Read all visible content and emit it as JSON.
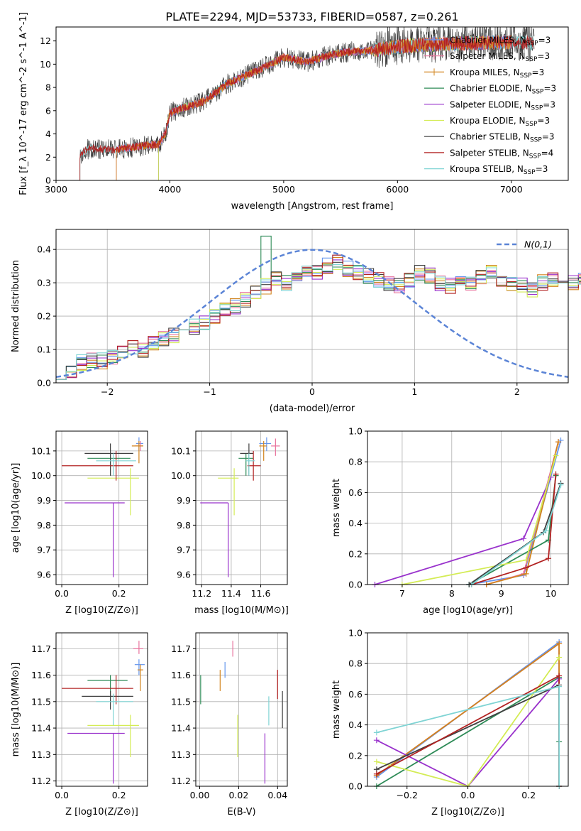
{
  "figure_title": "PLATE=2294, MJD=53733, FIBERID=0587, z=0.261",
  "colors": {
    "Chabrier MILES": "#6495ed",
    "Salpeter MILES": "#e8729c",
    "Kroupa MILES": "#d2841e",
    "Chabrier ELODIE": "#2e8b57",
    "Salpeter ELODIE": "#9932cc",
    "Kroupa ELODIE": "#d4ec55",
    "Chabrier STELIB": "#404040",
    "Salpeter STELIB": "#b22222",
    "Kroupa STELIB": "#7fd4d4",
    "gauss": "#5b84d6",
    "grid": "#b0b0b0"
  },
  "chart_data": [
    {
      "id": "spectrum",
      "type": "line",
      "title": "PLATE=2294, MJD=53733, FIBERID=0587, z=0.261",
      "xlabel": "wavelength [Angstrom, rest frame]",
      "ylabel": "Flux [f_λ 10^-17 erg cm^-2 s^-1 A^-1]",
      "xlim": [
        3000,
        7500
      ],
      "ylim": [
        0,
        13.2
      ],
      "xticks": [
        3000,
        4000,
        5000,
        6000,
        7000
      ],
      "yticks": [
        0,
        2,
        4,
        6,
        8,
        10,
        12
      ],
      "grid": false,
      "legend_position": "top-right",
      "legend": [
        "Chabrier MILES, N_SSP=3",
        "Salpeter MILES, N_SSP=3",
        "Kroupa MILES, N_SSP=3",
        "Chabrier ELODIE, N_SSP=3",
        "Salpeter ELODIE, N_SSP=3",
        "Kroupa ELODIE, N_SSP=3",
        "Chabrier STELIB, N_SSP=3",
        "Salpeter STELIB, N_SSP=4",
        "Kroupa STELIB, N_SSP=3"
      ],
      "continuum": {
        "x": [
          3210,
          3300,
          3500,
          3700,
          3900,
          3960,
          4000,
          4100,
          4300,
          4500,
          4800,
          5000,
          5200,
          5500,
          5800,
          6000,
          6300,
          6600,
          7000,
          7200
        ],
        "y": [
          2.2,
          2.8,
          2.6,
          2.9,
          3.1,
          4.0,
          5.8,
          6.2,
          6.8,
          8.3,
          9.6,
          10.6,
          10.2,
          11.0,
          11.2,
          11.5,
          11.7,
          11.8,
          11.9,
          11.8
        ]
      },
      "model_ranges": {
        "Chabrier MILES": [
          3530,
          7000
        ],
        "Salpeter MILES": [
          3530,
          7000
        ],
        "Kroupa MILES": [
          3530,
          7000
        ],
        "Chabrier ELODIE": [
          3900,
          6800
        ],
        "Salpeter ELODIE": [
          3900,
          6800
        ],
        "Kroupa ELODIE": [
          3900,
          6800
        ],
        "Chabrier STELIB": [
          3210,
          7200
        ],
        "Salpeter STELIB": [
          3210,
          7200
        ],
        "Kroupa STELIB": [
          3210,
          7200
        ]
      }
    },
    {
      "id": "residuals",
      "type": "area",
      "xlabel": "(data-model)/error",
      "ylabel": "Normed distribution",
      "xlim": [
        -2.5,
        2.5
      ],
      "ylim": [
        0,
        0.46
      ],
      "xticks": [
        -2,
        -1,
        0,
        1,
        2
      ],
      "yticks": [
        0.0,
        0.1,
        0.2,
        0.3,
        0.4
      ],
      "grid": true,
      "legend_position": "top-right",
      "gauss_label": "N(0,1)",
      "bin_width": 0.1,
      "bin_start": -2.5,
      "reference_hist": [
        0.025,
        0.035,
        0.06,
        0.07,
        0.065,
        0.08,
        0.09,
        0.11,
        0.1,
        0.12,
        0.13,
        0.14,
        0.16,
        0.17,
        0.18,
        0.2,
        0.22,
        0.23,
        0.25,
        0.27,
        0.29,
        0.31,
        0.3,
        0.32,
        0.34,
        0.33,
        0.35,
        0.36,
        0.34,
        0.33,
        0.32,
        0.31,
        0.3,
        0.29,
        0.31,
        0.33,
        0.32,
        0.3,
        0.29,
        0.31,
        0.3,
        0.32,
        0.33,
        0.31,
        0.3,
        0.29,
        0.28,
        0.3,
        0.31,
        0.32,
        0.3,
        0.31,
        0.29,
        0.28,
        0.27,
        0.26,
        0.25,
        0.24,
        0.22,
        0.21,
        0.2,
        0.19,
        0.18,
        0.17,
        0.16,
        0.15,
        0.14,
        0.13,
        0.12,
        0.11,
        0.1,
        0.09,
        0.085,
        0.08,
        0.075,
        0.07,
        0.065,
        0.06,
        0.055,
        0.05
      ]
    },
    {
      "id": "age_vs_Z",
      "type": "scatter",
      "xlabel": "Z [log10(Z/Z⊙)]",
      "ylabel": "age [log10(age/yr)]",
      "xlim": [
        -0.02,
        0.3
      ],
      "ylim": [
        9.56,
        10.18
      ],
      "xticks": [
        0.0,
        0.2
      ],
      "yticks": [
        9.6,
        9.7,
        9.8,
        9.9,
        10.0,
        10.1
      ],
      "grid": true,
      "points": [
        {
          "series": "Chabrier MILES",
          "x": 0.27,
          "y": 10.13,
          "ex": [
            0.26,
            0.285
          ],
          "ey": [
            10.1,
            10.155
          ]
        },
        {
          "series": "Salpeter MILES",
          "x": 0.275,
          "y": 10.12,
          "ex": [
            0.255,
            0.285
          ],
          "ey": [
            10.1,
            10.14
          ]
        },
        {
          "series": "Kroupa MILES",
          "x": 0.27,
          "y": 10.12,
          "ex": [
            0.245,
            0.285
          ],
          "ey": [
            10.05,
            10.14
          ]
        },
        {
          "series": "Chabrier ELODIE",
          "x": 0.17,
          "y": 10.07,
          "ex": [
            0.09,
            0.24
          ],
          "ey": [
            10.0,
            10.09
          ]
        },
        {
          "series": "Salpeter ELODIE",
          "x": 0.18,
          "y": 9.89,
          "ex": [
            0.01,
            0.22
          ],
          "ey": [
            9.59,
            9.89
          ]
        },
        {
          "series": "Kroupa ELODIE",
          "x": 0.24,
          "y": 9.99,
          "ex": [
            0.09,
            0.27
          ],
          "ey": [
            9.84,
            10.03
          ]
        },
        {
          "series": "Chabrier STELIB",
          "x": 0.17,
          "y": 10.09,
          "ex": [
            0.08,
            0.25
          ],
          "ey": [
            10.0,
            10.13
          ]
        },
        {
          "series": "Salpeter STELIB",
          "x": 0.19,
          "y": 10.04,
          "ex": [
            0.0,
            0.25
          ],
          "ey": [
            9.98,
            10.1
          ]
        },
        {
          "series": "Kroupa STELIB",
          "x": 0.18,
          "y": 10.06,
          "ex": [
            0.12,
            0.26
          ],
          "ey": [
            10.0,
            10.09
          ]
        }
      ]
    },
    {
      "id": "age_vs_mass",
      "type": "scatter",
      "xlabel": "mass [log10(M/M⊙)]",
      "ylabel": "",
      "xlim": [
        11.16,
        11.78
      ],
      "ylim": [
        9.56,
        10.18
      ],
      "xticks": [
        11.2,
        11.4,
        11.6
      ],
      "yticks": [
        9.6,
        9.7,
        9.8,
        9.9,
        10.0,
        10.1
      ],
      "grid": true,
      "points": [
        {
          "series": "Chabrier MILES",
          "x": 11.64,
          "y": 10.13,
          "ex": [
            11.59,
            11.67
          ],
          "ey": [
            10.1,
            10.155
          ]
        },
        {
          "series": "Salpeter MILES",
          "x": 11.7,
          "y": 10.12,
          "ex": [
            11.67,
            11.73
          ],
          "ey": [
            10.08,
            10.15
          ]
        },
        {
          "series": "Kroupa MILES",
          "x": 11.62,
          "y": 10.12,
          "ex": [
            11.59,
            11.64
          ],
          "ey": [
            10.06,
            10.14
          ]
        },
        {
          "series": "Chabrier ELODIE",
          "x": 11.5,
          "y": 10.07,
          "ex": [
            11.45,
            11.55
          ],
          "ey": [
            10.0,
            10.09
          ]
        },
        {
          "series": "Salpeter ELODIE",
          "x": 11.38,
          "y": 9.89,
          "ex": [
            11.19,
            11.38
          ],
          "ey": [
            9.59,
            9.89
          ]
        },
        {
          "series": "Kroupa ELODIE",
          "x": 11.42,
          "y": 9.99,
          "ex": [
            11.31,
            11.45
          ],
          "ey": [
            9.84,
            10.03
          ]
        },
        {
          "series": "Chabrier STELIB",
          "x": 11.52,
          "y": 10.09,
          "ex": [
            11.46,
            11.55
          ],
          "ey": [
            10.0,
            10.13
          ]
        },
        {
          "series": "Salpeter STELIB",
          "x": 11.55,
          "y": 10.04,
          "ex": [
            11.51,
            11.6
          ],
          "ey": [
            9.98,
            10.1
          ]
        },
        {
          "series": "Kroupa STELIB",
          "x": 11.52,
          "y": 10.06,
          "ex": [
            11.5,
            11.56
          ],
          "ey": [
            10.0,
            10.09
          ]
        }
      ]
    },
    {
      "id": "weight_vs_age",
      "type": "line",
      "xlabel": "age [log10(age/yr)]",
      "ylabel": "mass weight",
      "xlim": [
        6.3,
        10.35
      ],
      "ylim": [
        0,
        1.0
      ],
      "xticks": [
        7,
        8,
        9,
        10
      ],
      "yticks": [
        0.0,
        0.2,
        0.4,
        0.6,
        0.8,
        1.0
      ],
      "grid": true,
      "lines": [
        {
          "series": "Chabrier MILES",
          "x": [
            8.35,
            9.45,
            10.2
          ],
          "y": [
            0.0,
            0.06,
            0.94
          ]
        },
        {
          "series": "Salpeter MILES",
          "x": [
            8.7,
            9.45,
            10.15
          ],
          "y": [
            0.0,
            0.07,
            0.93
          ]
        },
        {
          "series": "Kroupa MILES",
          "x": [
            8.7,
            9.5,
            10.15
          ],
          "y": [
            0.0,
            0.07,
            0.93
          ]
        },
        {
          "series": "Chabrier ELODIE",
          "x": [
            8.35,
            9.95,
            10.1
          ],
          "y": [
            0.0,
            0.29,
            0.71
          ]
        },
        {
          "series": "Salpeter ELODIE",
          "x": [
            6.45,
            9.45,
            10.0
          ],
          "y": [
            0.0,
            0.3,
            0.7
          ]
        },
        {
          "series": "Kroupa ELODIE",
          "x": [
            7.0,
            9.5,
            10.1
          ],
          "y": [
            0.0,
            0.16,
            0.84
          ]
        },
        {
          "series": "Chabrier STELIB",
          "x": [
            8.35,
            9.85,
            10.2
          ],
          "y": [
            0.0,
            0.34,
            0.66
          ]
        },
        {
          "series": "Salpeter STELIB",
          "x": [
            8.4,
            9.5,
            9.95,
            10.1
          ],
          "y": [
            0.0,
            0.11,
            0.17,
            0.72
          ]
        },
        {
          "series": "Kroupa STELIB",
          "x": [
            8.4,
            9.9,
            10.2
          ],
          "y": [
            0.0,
            0.35,
            0.65
          ]
        }
      ]
    },
    {
      "id": "mass_vs_Z",
      "type": "scatter",
      "xlabel": "Z [log10(Z/Z⊙)]",
      "ylabel": "mass [log10(M/M⊙)]",
      "xlim": [
        -0.02,
        0.3
      ],
      "ylim": [
        11.18,
        11.76
      ],
      "xticks": [
        0.0,
        0.2
      ],
      "yticks": [
        11.2,
        11.3,
        11.4,
        11.5,
        11.6,
        11.7
      ],
      "grid": true,
      "points": [
        {
          "series": "Chabrier MILES",
          "x": 0.27,
          "y": 11.64,
          "ex": [
            0.255,
            0.29
          ],
          "ey": [
            11.6,
            11.66
          ]
        },
        {
          "series": "Salpeter MILES",
          "x": 0.27,
          "y": 11.7,
          "ex": [
            0.25,
            0.285
          ],
          "ey": [
            11.68,
            11.73
          ]
        },
        {
          "series": "Kroupa MILES",
          "x": 0.275,
          "y": 11.62,
          "ex": [
            0.265,
            0.285
          ],
          "ey": [
            11.54,
            11.64
          ]
        },
        {
          "series": "Chabrier ELODIE",
          "x": 0.17,
          "y": 11.58,
          "ex": [
            0.09,
            0.23
          ],
          "ey": [
            11.5,
            11.6
          ]
        },
        {
          "series": "Salpeter ELODIE",
          "x": 0.18,
          "y": 11.38,
          "ex": [
            0.02,
            0.22
          ],
          "ey": [
            11.19,
            11.38
          ]
        },
        {
          "series": "Kroupa ELODIE",
          "x": 0.24,
          "y": 11.41,
          "ex": [
            0.09,
            0.27
          ],
          "ey": [
            11.29,
            11.45
          ]
        },
        {
          "series": "Chabrier STELIB",
          "x": 0.17,
          "y": 11.52,
          "ex": [
            0.07,
            0.25
          ],
          "ey": [
            11.47,
            11.54
          ]
        },
        {
          "series": "Salpeter STELIB",
          "x": 0.19,
          "y": 11.55,
          "ex": [
            0.0,
            0.25
          ],
          "ey": [
            11.49,
            11.6
          ]
        },
        {
          "series": "Kroupa STELIB",
          "x": 0.18,
          "y": 11.5,
          "ex": [
            0.12,
            0.25
          ],
          "ey": [
            11.41,
            11.53
          ]
        }
      ]
    },
    {
      "id": "mass_vs_ebv",
      "type": "scatter",
      "xlabel": "E(B-V)",
      "ylabel": "",
      "xlim": [
        -0.002,
        0.045
      ],
      "ylim": [
        11.18,
        11.76
      ],
      "xticks": [
        0.0,
        0.02,
        0.04
      ],
      "yticks": [
        11.2,
        11.3,
        11.4,
        11.5,
        11.6,
        11.7
      ],
      "grid": true,
      "points": [
        {
          "series": "Chabrier MILES",
          "x": 0.013,
          "y": 11.63,
          "ey": [
            11.59,
            11.65
          ]
        },
        {
          "series": "Salpeter MILES",
          "x": 0.017,
          "y": 11.7,
          "ey": [
            11.67,
            11.73
          ]
        },
        {
          "series": "Kroupa MILES",
          "x": 0.0105,
          "y": 11.59,
          "ey": [
            11.54,
            11.62
          ]
        },
        {
          "series": "Chabrier ELODIE",
          "x": 0.0005,
          "y": 11.55,
          "ey": [
            11.49,
            11.6
          ]
        },
        {
          "series": "Salpeter ELODIE",
          "x": 0.0335,
          "y": 11.31,
          "ey": [
            11.19,
            11.38
          ]
        },
        {
          "series": "Kroupa ELODIE",
          "x": 0.0195,
          "y": 11.38,
          "ey": [
            11.29,
            11.45
          ]
        },
        {
          "series": "Chabrier STELIB",
          "x": 0.0425,
          "y": 11.47,
          "ey": [
            11.4,
            11.54
          ]
        },
        {
          "series": "Salpeter STELIB",
          "x": 0.04,
          "y": 11.57,
          "ey": [
            11.51,
            11.62
          ]
        },
        {
          "series": "Kroupa STELIB",
          "x": 0.0355,
          "y": 11.46,
          "ey": [
            11.41,
            11.52
          ]
        }
      ]
    },
    {
      "id": "weight_vs_Z",
      "type": "line",
      "xlabel": "Z [log10(Z/Z⊙)]",
      "ylabel": "mass weight",
      "xlim": [
        -0.33,
        0.33
      ],
      "ylim": [
        0,
        1.0
      ],
      "xticks": [
        -0.2,
        0.0,
        0.2
      ],
      "yticks": [
        0.0,
        0.2,
        0.4,
        0.6,
        0.8,
        1.0
      ],
      "grid": true,
      "lines": [
        {
          "series": "Chabrier MILES",
          "x": [
            -0.3,
            0.3,
            0.3
          ],
          "y": [
            0.06,
            0.94,
            0.0
          ]
        },
        {
          "series": "Salpeter MILES",
          "x": [
            -0.3,
            0.3,
            0.3
          ],
          "y": [
            0.07,
            0.93,
            0.0
          ]
        },
        {
          "series": "Kroupa MILES",
          "x": [
            -0.3,
            0.3,
            0.3
          ],
          "y": [
            0.07,
            0.93,
            0.0
          ]
        },
        {
          "series": "Chabrier ELODIE",
          "x": [
            -0.3,
            0.3,
            0.3
          ],
          "y": [
            0.0,
            0.71,
            0.29
          ]
        },
        {
          "series": "Salpeter ELODIE",
          "x": [
            -0.3,
            0.0,
            0.3
          ],
          "y": [
            0.3,
            0.0,
            0.7
          ]
        },
        {
          "series": "Kroupa ELODIE",
          "x": [
            -0.3,
            0.0,
            0.3
          ],
          "y": [
            0.16,
            0.0,
            0.84
          ]
        },
        {
          "series": "Chabrier STELIB",
          "x": [
            -0.3,
            0.3,
            0.3
          ],
          "y": [
            0.11,
            0.66,
            0.0
          ]
        },
        {
          "series": "Salpeter STELIB",
          "x": [
            -0.3,
            0.3,
            0.3
          ],
          "y": [
            0.08,
            0.72,
            0.0
          ]
        },
        {
          "series": "Kroupa STELIB",
          "x": [
            -0.3,
            0.3,
            0.3
          ],
          "y": [
            0.35,
            0.65,
            0.0
          ]
        }
      ]
    }
  ]
}
